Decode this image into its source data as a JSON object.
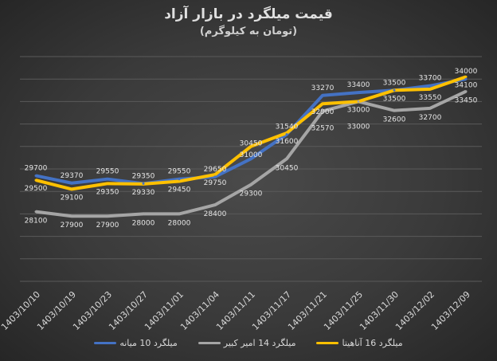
{
  "chart_data": {
    "type": "line",
    "title": "قیمت میلگرد در بازار آزاد",
    "subtitle": "(تومان به کیلوگرم)",
    "categories": [
      "1403/10/10",
      "1403/10/19",
      "1403/10/23",
      "1403/10/27",
      "1403/11/01",
      "1403/11/04",
      "1403/11/11",
      "1403/11/17",
      "1403/11/21",
      "1403/11/25",
      "1403/11/30",
      "1403/12/02",
      "1403/12/09"
    ],
    "ylim": [
      25000,
      35000
    ],
    "grid": true,
    "legend_position": "bottom",
    "series": [
      {
        "name": "میلگرد 10 میانه",
        "color": "#4472c4",
        "values": [
          29700,
          29370,
          29550,
          29350,
          29550,
          29650,
          30450,
          31540,
          33270,
          33400,
          33500,
          33700,
          34000
        ]
      },
      {
        "name": "میلگرد 14 امیر کبیر",
        "color": "#a5a5a5",
        "values": [
          28100,
          27900,
          27900,
          28000,
          28000,
          28400,
          29300,
          30450,
          32570,
          33000,
          32600,
          32700,
          33450
        ]
      },
      {
        "name": "میلگرد 16 آناهیتا",
        "color": "#ffc000",
        "values": [
          29500,
          29100,
          29350,
          29330,
          29450,
          29750,
          31000,
          31600,
          32900,
          33000,
          33500,
          33550,
          34100
        ]
      }
    ]
  }
}
